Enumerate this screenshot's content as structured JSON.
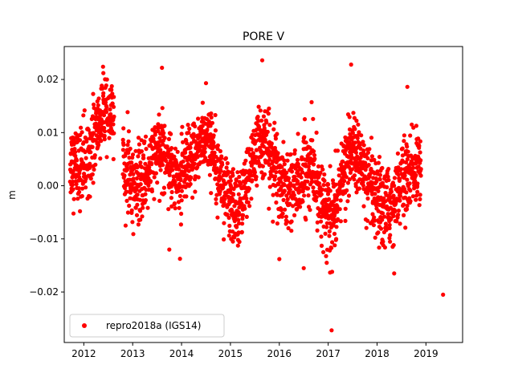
{
  "chart_data": {
    "type": "scatter",
    "title": "PORE V",
    "xlabel": "",
    "ylabel": "m",
    "xlim": [
      2011.6,
      2019.75
    ],
    "ylim": [
      -0.0295,
      0.0262
    ],
    "x_ticks": [
      2012,
      2013,
      2014,
      2015,
      2016,
      2017,
      2018,
      2019
    ],
    "x_tick_labels": [
      "2012",
      "2013",
      "2014",
      "2015",
      "2016",
      "2017",
      "2018",
      "2019"
    ],
    "y_ticks": [
      -0.02,
      -0.01,
      0.0,
      0.01,
      0.02
    ],
    "y_tick_labels": [
      "−0.02",
      "−0.01",
      "0.00",
      "0.01",
      "0.02"
    ],
    "grid": false,
    "legend_position": "lower-left",
    "colors": {
      "series": "#ff0000",
      "axis": "#000000",
      "background": "#ffffff"
    },
    "series": [
      {
        "name": "repro2018a (IGS14)",
        "marker": "circle",
        "color": "#ff0000",
        "envelope": [
          {
            "x": 2011.75,
            "mean": 0.0045,
            "spread": 0.006
          },
          {
            "x": 2012.0,
            "mean": 0.0035,
            "spread": 0.0065
          },
          {
            "x": 2012.2,
            "mean": 0.009,
            "spread": 0.006
          },
          {
            "x": 2012.4,
            "mean": 0.0135,
            "spread": 0.005
          },
          {
            "x": 2012.65,
            "mean": 0.012,
            "spread": 0.005
          },
          {
            "x": 2012.85,
            "mean": 0.003,
            "spread": 0.006
          },
          {
            "x": 2013.1,
            "mean": -0.001,
            "spread": 0.006
          },
          {
            "x": 2013.4,
            "mean": 0.005,
            "spread": 0.006
          },
          {
            "x": 2013.65,
            "mean": 0.007,
            "spread": 0.0055
          },
          {
            "x": 2013.95,
            "mean": 0.0005,
            "spread": 0.006
          },
          {
            "x": 2014.2,
            "mean": 0.004,
            "spread": 0.006
          },
          {
            "x": 2014.45,
            "mean": 0.0095,
            "spread": 0.005
          },
          {
            "x": 2014.7,
            "mean": 0.006,
            "spread": 0.005
          },
          {
            "x": 2014.9,
            "mean": -0.002,
            "spread": 0.006
          },
          {
            "x": 2015.1,
            "mean": -0.005,
            "spread": 0.0055
          },
          {
            "x": 2015.35,
            "mean": 0.001,
            "spread": 0.006
          },
          {
            "x": 2015.6,
            "mean": 0.009,
            "spread": 0.005
          },
          {
            "x": 2015.85,
            "mean": 0.005,
            "spread": 0.006
          },
          {
            "x": 2016.1,
            "mean": -0.001,
            "spread": 0.006
          },
          {
            "x": 2016.4,
            "mean": 0.0005,
            "spread": 0.0065
          },
          {
            "x": 2016.65,
            "mean": 0.004,
            "spread": 0.006
          },
          {
            "x": 2016.85,
            "mean": -0.002,
            "spread": 0.006
          },
          {
            "x": 2017.05,
            "mean": -0.007,
            "spread": 0.006
          },
          {
            "x": 2017.3,
            "mean": 0.002,
            "spread": 0.005
          },
          {
            "x": 2017.5,
            "mean": 0.007,
            "spread": 0.006
          },
          {
            "x": 2017.75,
            "mean": 0.002,
            "spread": 0.006
          },
          {
            "x": 2018.0,
            "mean": -0.004,
            "spread": 0.006
          },
          {
            "x": 2018.25,
            "mean": -0.004,
            "spread": 0.006
          },
          {
            "x": 2018.5,
            "mean": 0.0005,
            "spread": 0.006
          },
          {
            "x": 2018.85,
            "mean": 0.004,
            "spread": 0.005
          }
        ],
        "coverage": [
          [
            2011.72,
            2012.62
          ],
          [
            2012.8,
            2017.2
          ],
          [
            2017.22,
            2018.9
          ]
        ],
        "outliers": [
          {
            "x": 2012.4,
            "y": 0.0212
          },
          {
            "x": 2013.6,
            "y": 0.0222
          },
          {
            "x": 2014.5,
            "y": 0.0193
          },
          {
            "x": 2015.65,
            "y": 0.0236
          },
          {
            "x": 2017.47,
            "y": 0.0228
          },
          {
            "x": 2018.62,
            "y": 0.0186
          },
          {
            "x": 2017.07,
            "y": -0.0272
          },
          {
            "x": 2019.35,
            "y": -0.0205
          },
          {
            "x": 2018.35,
            "y": -0.0165
          },
          {
            "x": 2016.5,
            "y": -0.0155
          },
          {
            "x": 2017.08,
            "y": -0.0162
          },
          {
            "x": 2016.0,
            "y": -0.0138
          },
          {
            "x": 2013.75,
            "y": -0.012
          },
          {
            "x": 2015.05,
            "y": -0.0105
          },
          {
            "x": 2016.9,
            "y": -0.0125
          }
        ]
      }
    ]
  }
}
